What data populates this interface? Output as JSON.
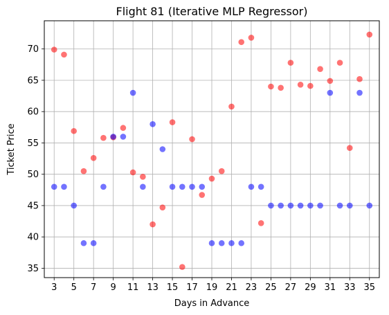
{
  "chart_data": {
    "type": "scatter",
    "title": "Flight 81 (Iterative MLP Regressor)",
    "xlabel": "Days in Advance",
    "ylabel": "Ticket Price",
    "xlim": [
      2,
      36
    ],
    "ylim": [
      33.5,
      74.5
    ],
    "xticks": [
      3,
      5,
      7,
      9,
      11,
      13,
      15,
      17,
      19,
      21,
      23,
      25,
      27,
      29,
      31,
      33,
      35
    ],
    "yticks": [
      35,
      40,
      45,
      50,
      55,
      60,
      65,
      70
    ],
    "grid": true,
    "series": [
      {
        "color": "#ff0000",
        "alpha": 0.55,
        "points": [
          [
            3,
            69.9
          ],
          [
            4,
            69.1
          ],
          [
            5,
            56.9
          ],
          [
            6,
            50.5
          ],
          [
            7,
            52.6
          ],
          [
            8,
            55.8
          ],
          [
            9,
            55.9
          ],
          [
            10,
            57.4
          ],
          [
            11,
            50.3
          ],
          [
            12,
            49.6
          ],
          [
            13,
            42.0
          ],
          [
            14,
            44.7
          ],
          [
            15,
            58.3
          ],
          [
            16,
            35.2
          ],
          [
            17,
            55.6
          ],
          [
            18,
            46.7
          ],
          [
            19,
            49.3
          ],
          [
            20,
            50.5
          ],
          [
            21,
            60.8
          ],
          [
            22,
            71.1
          ],
          [
            23,
            71.8
          ],
          [
            24,
            42.2
          ],
          [
            25,
            64.0
          ],
          [
            26,
            63.8
          ],
          [
            27,
            67.8
          ],
          [
            28,
            64.3
          ],
          [
            29,
            64.1
          ],
          [
            30,
            66.8
          ],
          [
            31,
            64.9
          ],
          [
            32,
            67.8
          ],
          [
            33,
            54.2
          ],
          [
            34,
            65.2
          ],
          [
            35,
            72.3
          ]
        ]
      },
      {
        "color": "#0000ff",
        "alpha": 0.55,
        "points": [
          [
            3,
            48
          ],
          [
            4,
            48
          ],
          [
            5,
            45
          ],
          [
            6,
            39
          ],
          [
            7,
            39
          ],
          [
            8,
            48
          ],
          [
            9,
            56
          ],
          [
            10,
            56
          ],
          [
            11,
            63
          ],
          [
            12,
            48
          ],
          [
            13,
            58
          ],
          [
            14,
            54
          ],
          [
            15,
            48
          ],
          [
            16,
            48
          ],
          [
            17,
            48
          ],
          [
            18,
            48
          ],
          [
            19,
            39
          ],
          [
            20,
            39
          ],
          [
            21,
            39
          ],
          [
            22,
            39
          ],
          [
            23,
            48
          ],
          [
            24,
            48
          ],
          [
            25,
            45
          ],
          [
            26,
            45
          ],
          [
            27,
            45
          ],
          [
            28,
            45
          ],
          [
            29,
            45
          ],
          [
            30,
            45
          ],
          [
            31,
            63
          ],
          [
            32,
            45
          ],
          [
            33,
            45
          ],
          [
            34,
            63
          ],
          [
            35,
            45
          ]
        ]
      }
    ]
  }
}
